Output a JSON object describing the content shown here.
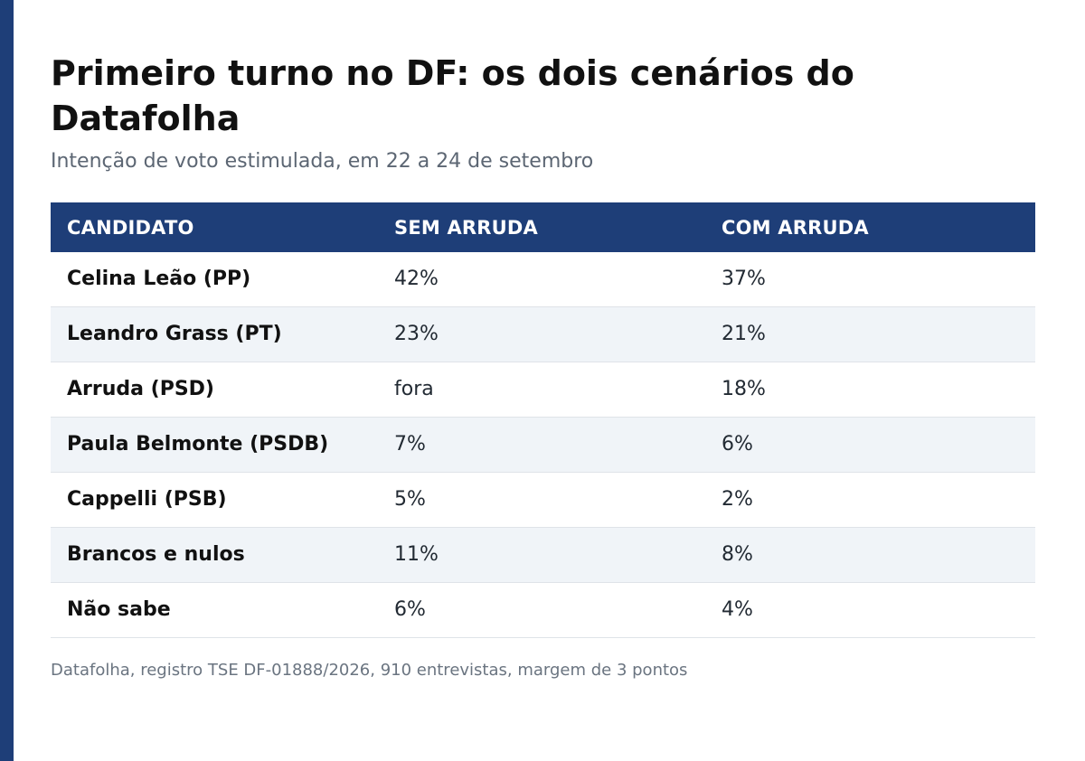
{
  "chart_data": {
    "type": "table",
    "title": "Primeiro turno no DF: os dois cenários do Datafolha",
    "subtitle": "Intenção de voto estimulada, em 22 a 24 de setembro",
    "columns": [
      "CANDIDATO",
      "SEM ARRUDA",
      "COM ARRUDA"
    ],
    "rows": [
      {
        "name": "Celina Leão (PP)",
        "sem": "42%",
        "com": "37%"
      },
      {
        "name": "Leandro Grass (PT)",
        "sem": "23%",
        "com": "21%"
      },
      {
        "name": "Arruda (PSD)",
        "sem": "fora",
        "com": "18%"
      },
      {
        "name": "Paula Belmonte (PSDB)",
        "sem": "7%",
        "com": "6%"
      },
      {
        "name": "Cappelli (PSB)",
        "sem": "5%",
        "com": "2%"
      },
      {
        "name": "Brancos e nulos",
        "sem": "11%",
        "com": "8%"
      },
      {
        "name": "Não sabe",
        "sem": "6%",
        "com": "4%"
      }
    ],
    "source": "Datafolha, registro TSE DF-01888/2026, 910 entrevistas, margem de 3 pontos"
  },
  "colors": {
    "accent": "#1e3e78",
    "row_alt": "#f0f4f8"
  }
}
